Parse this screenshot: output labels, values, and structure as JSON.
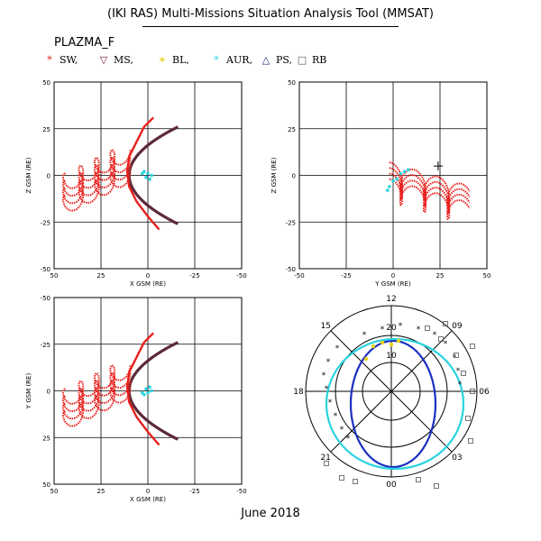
{
  "title": "(IKI RAS) Multi-Missions Situation Analysis Tool (MMSAT)",
  "dataset": "PLAZMA_F",
  "footer": "June 2018",
  "legend": [
    {
      "symbol": "*",
      "label": "SW,",
      "color": "#e8201c",
      "icon": "star-icon"
    },
    {
      "symbol": "▽",
      "label": "MS,",
      "color": "#6b1b2a",
      "icon": "down-triangle-icon"
    },
    {
      "symbol": "✶",
      "label": "BL,",
      "color": "#e8d21a",
      "icon": "diamond-icon"
    },
    {
      "symbol": "*",
      "label": "AUR,",
      "color": "#28d4e0",
      "icon": "asterisk-icon"
    },
    {
      "symbol": "△",
      "label": "PS,",
      "color": "#1a237e",
      "icon": "triangle-icon"
    },
    {
      "symbol": "□",
      "label": "RB",
      "color": "#555555",
      "icon": "square-icon"
    }
  ],
  "colors": {
    "sw": "#e8201c",
    "boundary": "#5c2a3a",
    "aur": "#28d4e0",
    "bl": "#e8d21a",
    "inner": "#1a2fbf",
    "rb": "#555555"
  },
  "chart_data": [
    {
      "type": "scatter",
      "xlabel": "X GSM (RE)",
      "ylabel": "Z GSM (RE)",
      "xlim": [
        50,
        -50
      ],
      "ylim": [
        -50,
        50
      ],
      "xticks": [
        "50",
        "25",
        "0",
        "-25",
        "-50"
      ],
      "yticks": [
        "50",
        "25",
        "0",
        "-25",
        "-50"
      ],
      "grid": true
    },
    {
      "type": "scatter",
      "xlabel": "Y GSM (RE)",
      "ylabel": "Z GSM (RE)",
      "xlim": [
        -50,
        50
      ],
      "ylim": [
        -50,
        50
      ],
      "xticks": [
        "-50",
        "-25",
        "0",
        "25",
        "50"
      ],
      "yticks": [
        "50",
        "25",
        "0",
        "-25",
        "-50"
      ],
      "grid": true
    },
    {
      "type": "scatter",
      "xlabel": "X GSM (RE)",
      "ylabel": "Y GSM (RE)",
      "xlim": [
        50,
        -50
      ],
      "ylim": [
        50,
        -50
      ],
      "xticks": [
        "50",
        "25",
        "0",
        "-25",
        "-50"
      ],
      "yticks": [
        "-50",
        "-25",
        "0",
        "25",
        "50"
      ],
      "grid": true
    },
    {
      "type": "polar",
      "hour_labels": [
        "12",
        "15",
        "18",
        "21",
        "00",
        "03",
        "06",
        "09"
      ],
      "ring_labels": [
        "20",
        "10"
      ]
    }
  ]
}
